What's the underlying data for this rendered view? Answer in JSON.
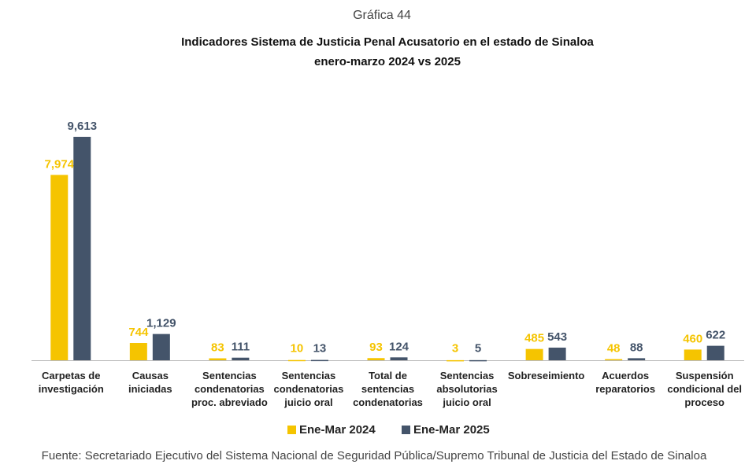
{
  "chart_data": {
    "type": "bar",
    "supertitle": "Gráfica 44",
    "title": "Indicadores Sistema de Justicia Penal Acusatorio en el estado de Sinaloa",
    "subtitle": "enero-marzo 2024 vs 2025",
    "categories": [
      "Carpetas de investigación",
      "Causas iniciadas",
      "Sentencias condenatorias proc. abreviado",
      "Sentencias condenatorias juicio oral",
      "Total de sentencias condenatorias",
      "Sentencias absolutorias juicio oral",
      "Sobreseimiento",
      "Acuerdos reparatorios",
      "Suspensión condicional del proceso"
    ],
    "series": [
      {
        "name": "Ene-Mar 2024",
        "color": "#f5c400",
        "values": [
          7974,
          744,
          83,
          10,
          93,
          3,
          485,
          48,
          460
        ],
        "value_labels": [
          "7,974",
          "744",
          "83",
          "10",
          "93",
          "3",
          "485",
          "48",
          "460"
        ]
      },
      {
        "name": "Ene-Mar 2025",
        "color": "#44546a",
        "values": [
          9613,
          1129,
          111,
          13,
          124,
          5,
          543,
          88,
          622
        ],
        "value_labels": [
          "9,613",
          "1,129",
          "111",
          "13",
          "124",
          "5",
          "543",
          "88",
          "622"
        ]
      }
    ],
    "ylim": [
      0,
      11100
    ],
    "legend": "bottom",
    "source": "Fuente: Secretariado Ejecutivo del Sistema Nacional de Seguridad Pública/Supremo Tribunal de Justicia del Estado de Sinaloa"
  }
}
